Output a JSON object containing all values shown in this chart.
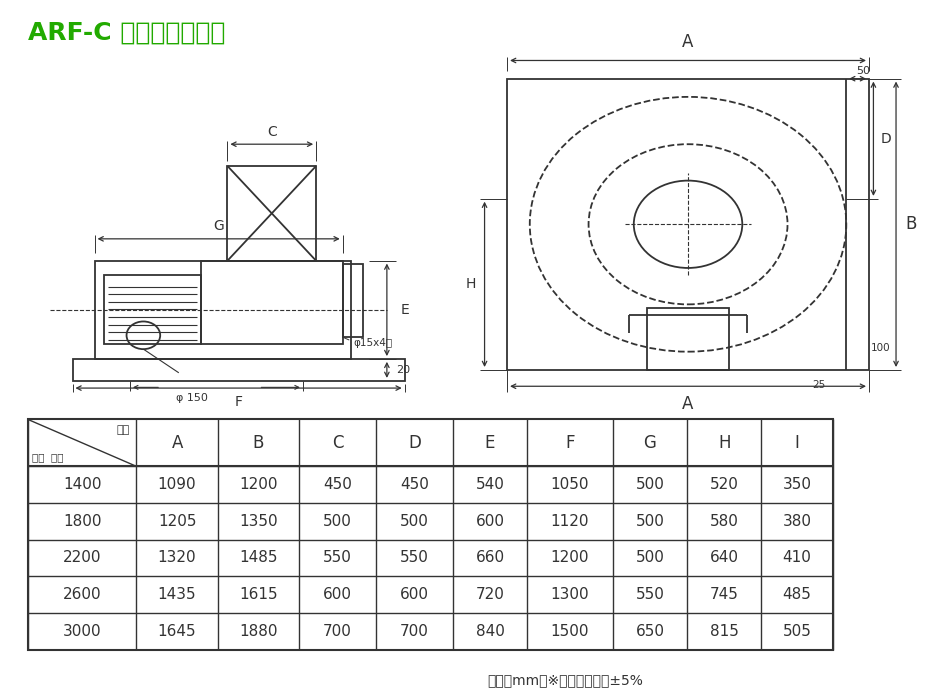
{
  "title": "ARF-C 風機外型尺寸表",
  "title_color": "#22aa00",
  "title_fontsize": 18,
  "table_headers": [
    "",
    "A",
    "B",
    "C",
    "D",
    "E",
    "F",
    "G",
    "H",
    "I"
  ],
  "header_label_top": "符號",
  "header_label_bot": "型式  尺寸",
  "table_rows": [
    [
      "1400",
      "1090",
      "1200",
      "450",
      "450",
      "540",
      "1050",
      "500",
      "520",
      "350"
    ],
    [
      "1800",
      "1205",
      "1350",
      "500",
      "500",
      "600",
      "1120",
      "500",
      "580",
      "380"
    ],
    [
      "2200",
      "1320",
      "1485",
      "550",
      "550",
      "660",
      "1200",
      "500",
      "640",
      "410"
    ],
    [
      "2600",
      "1435",
      "1615",
      "600",
      "600",
      "720",
      "1300",
      "550",
      "745",
      "485"
    ],
    [
      "3000",
      "1645",
      "1880",
      "700",
      "700",
      "840",
      "1500",
      "650",
      "815",
      "505"
    ]
  ],
  "footnote": "單位：mm　※以上尺寸公差±5%",
  "bg_color": "#ffffff",
  "line_color": "#333333",
  "text_color": "#333333",
  "green_color": "#22aa00"
}
